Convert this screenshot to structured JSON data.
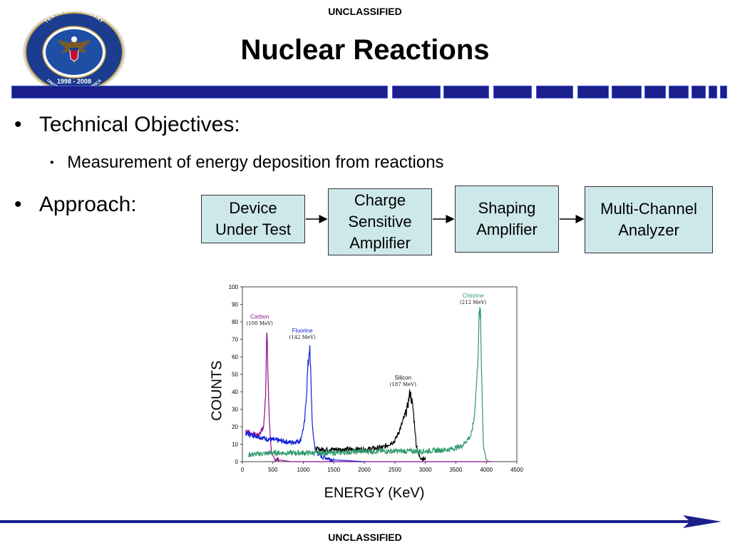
{
  "header": {
    "classification": "UNCLASSIFIED"
  },
  "footer": {
    "classification": "UNCLASSIFIED"
  },
  "slide": {
    "title": "Nuclear Reactions"
  },
  "logo": {
    "ring_text_top": "TENTH ANNIVERSARY",
    "ring_text_left": "DEFENSE THREAT REDUCTION AGENCY",
    "ring_text_bottom": "UNITED STATES OF AMERICA",
    "years": "1998 - 2008"
  },
  "bullets": {
    "objectives_label": "Technical Objectives:",
    "objective_1": "Measurement of energy deposition from reactions",
    "approach_label": "Approach:"
  },
  "flow": [
    {
      "label": "Device\nUnder Test"
    },
    {
      "label": "Charge\nSensitive\nAmplifier"
    },
    {
      "label": "Shaping\nAmplifier"
    },
    {
      "label": "Multi-Channel\nAnalyzer"
    }
  ],
  "colors": {
    "banner_blue": "#1a1f8c",
    "box_fill": "#cde8ea",
    "carbon": "#8e0f8e",
    "fluorine": "#1020d8",
    "silicon": "#000000",
    "chlorine": "#2e9a6a"
  },
  "chart_data": {
    "type": "line",
    "xlabel": "ENERGY (KeV)",
    "ylabel": "COUNTS",
    "xlim": [
      0,
      4500
    ],
    "ylim": [
      0,
      100
    ],
    "xticks": [
      "0",
      "500",
      "1000",
      "1500",
      "2000",
      "2500",
      "3000",
      "3500",
      "4000",
      "4500"
    ],
    "yticks": [
      "0",
      "10",
      "20",
      "30",
      "40",
      "50",
      "60",
      "70",
      "80",
      "90",
      "100"
    ],
    "grid": false,
    "series": [
      {
        "name": "Carbon",
        "energy": "(100 MeV)",
        "color": "#8e0f8e",
        "x": [
          50,
          150,
          250,
          300,
          350,
          380,
          400,
          420,
          440,
          470,
          500,
          600,
          800,
          1200,
          2000,
          3000,
          4000,
          4100
        ],
        "y": [
          18,
          16,
          15,
          17,
          20,
          40,
          75,
          50,
          25,
          8,
          2,
          1,
          0,
          0,
          0,
          0,
          0,
          0
        ]
      },
      {
        "name": "Fluorine",
        "energy": "(142 MeV)",
        "color": "#1020d8",
        "x": [
          50,
          200,
          400,
          600,
          800,
          950,
          1020,
          1060,
          1100,
          1120,
          1150,
          1200,
          1300,
          1500,
          2000
        ],
        "y": [
          16,
          15,
          13,
          12,
          11,
          12,
          22,
          45,
          67,
          50,
          18,
          6,
          3,
          1,
          0
        ]
      },
      {
        "name": "Silicon",
        "energy": "(187 MeV)",
        "color": "#000000",
        "x": [
          1200,
          1600,
          2000,
          2300,
          2500,
          2600,
          2700,
          2750,
          2800,
          2850,
          2900,
          3000
        ],
        "y": [
          7,
          7,
          7,
          8,
          12,
          20,
          30,
          40,
          30,
          10,
          3,
          1
        ]
      },
      {
        "name": "Chlorine",
        "energy": "(212 MeV)",
        "color": "#2e9a6a",
        "x": [
          100,
          500,
          1000,
          1500,
          2000,
          2500,
          3000,
          3400,
          3600,
          3750,
          3800,
          3850,
          3880,
          3900,
          3920,
          3950,
          4000,
          4050
        ],
        "y": [
          4,
          5,
          5,
          5,
          6,
          6,
          6,
          7,
          9,
          15,
          25,
          50,
          80,
          87,
          55,
          10,
          1,
          0
        ]
      }
    ]
  }
}
